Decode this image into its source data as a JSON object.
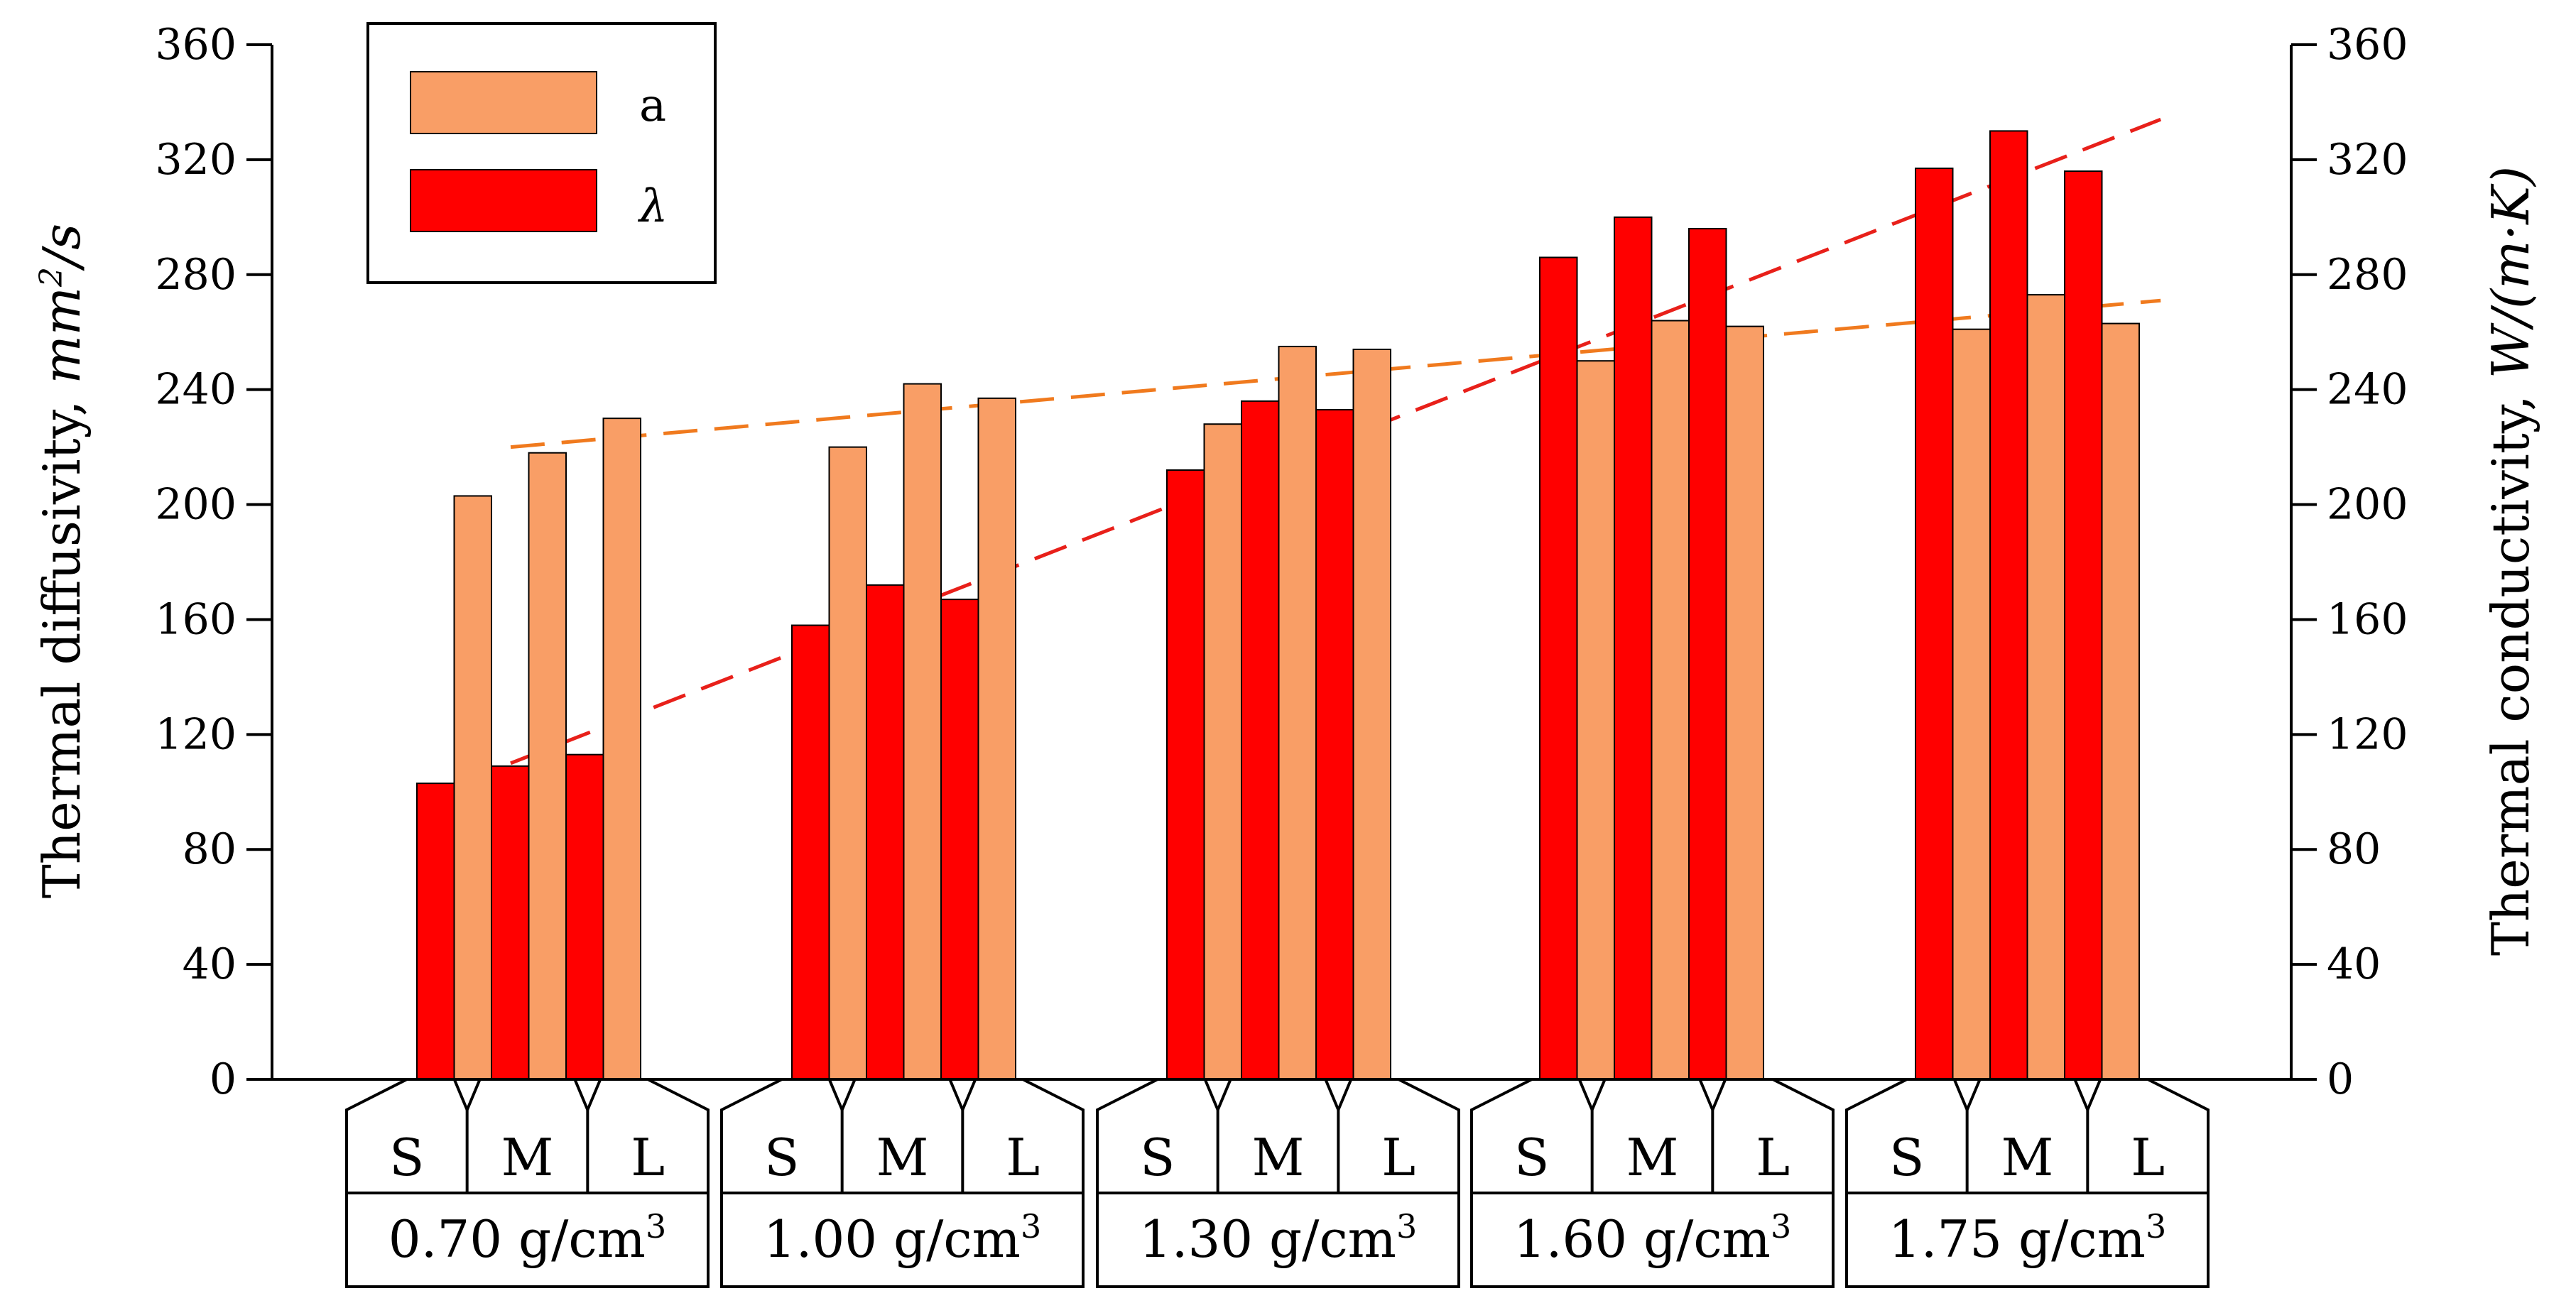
{
  "chart_data": {
    "type": "bar",
    "title": "",
    "ylabel_left": {
      "text": "Thermal diffusivity, ",
      "unit_main": "mm",
      "unit_sup": "2",
      "unit_tail": "/s"
    },
    "ylabel_right": {
      "text": "Thermal conductivity, ",
      "unit": "W/(m·K)"
    },
    "ylim": [
      0,
      360
    ],
    "y_ticks": [
      0,
      40,
      80,
      120,
      160,
      200,
      240,
      280,
      320,
      360
    ],
    "y_tick_labels": [
      "0",
      "40",
      "80",
      "120",
      "160",
      "200",
      "240",
      "280",
      "320",
      "360"
    ],
    "density_groups": [
      {
        "label": "0.70 g/cm",
        "sup": "3",
        "sizes": [
          "S",
          "M",
          "L"
        ]
      },
      {
        "label": "1.00 g/cm",
        "sup": "3",
        "sizes": [
          "S",
          "M",
          "L"
        ]
      },
      {
        "label": "1.30 g/cm",
        "sup": "3",
        "sizes": [
          "S",
          "M",
          "L"
        ]
      },
      {
        "label": "1.60 g/cm",
        "sup": "3",
        "sizes": [
          "S",
          "M",
          "L"
        ]
      },
      {
        "label": "1.75 g/cm",
        "sup": "3",
        "sizes": [
          "S",
          "M",
          "L"
        ]
      }
    ],
    "series": [
      {
        "name": "λ",
        "color": "#FF0000",
        "values": [
          [
            103,
            109,
            113
          ],
          [
            158,
            172,
            167
          ],
          [
            212,
            236,
            233
          ],
          [
            286,
            300,
            296
          ],
          [
            317,
            330,
            316
          ]
        ]
      },
      {
        "name": "a",
        "color": "#F99E66",
        "values": [
          [
            203,
            218,
            230
          ],
          [
            220,
            242,
            237
          ],
          [
            228,
            255,
            254
          ],
          [
            250,
            264,
            262
          ],
          [
            261,
            273,
            263
          ]
        ]
      }
    ],
    "trend_lines": [
      {
        "series": "λ",
        "color": "#E8201A",
        "dash": true,
        "x": [
          0.25,
          4.65
        ],
        "y": [
          110,
          334
        ]
      },
      {
        "series": "a",
        "color": "#F07A1E",
        "dash": true,
        "x": [
          0.25,
          4.65
        ],
        "y": [
          220,
          271
        ]
      }
    ],
    "legend": {
      "position": "top-left",
      "entries": [
        {
          "label": "a",
          "color": "#F99E66",
          "italic": false
        },
        {
          "label": "λ",
          "color": "#FF0000",
          "italic": true
        }
      ]
    }
  }
}
